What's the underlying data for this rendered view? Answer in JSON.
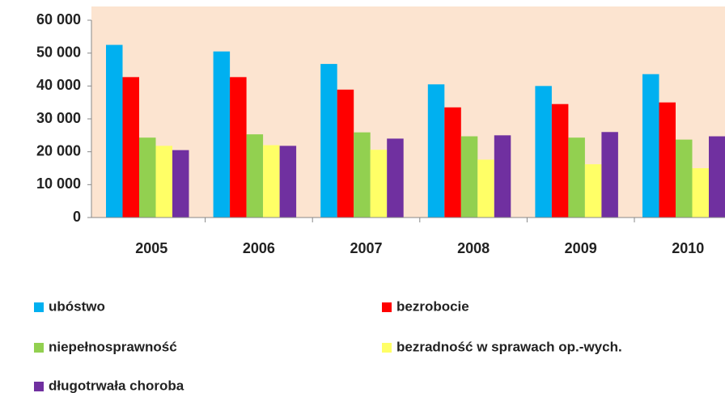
{
  "chart_data": {
    "type": "bar",
    "categories": [
      "2005",
      "2006",
      "2007",
      "2008",
      "2009",
      "2010"
    ],
    "series": [
      {
        "name": "ubóstwo",
        "color": "#00b0f0",
        "values": [
          52500,
          50500,
          46700,
          40500,
          40000,
          43600
        ]
      },
      {
        "name": "bezrobocie",
        "color": "#ff0000",
        "values": [
          42700,
          42700,
          38900,
          33500,
          34500,
          35000
        ]
      },
      {
        "name": "niepełnosprawność",
        "color": "#92d050",
        "values": [
          24300,
          25300,
          25900,
          24700,
          24300,
          23700
        ]
      },
      {
        "name": "bezradność w sprawach op.-wych.",
        "color": "#ffff66",
        "values": [
          21800,
          22000,
          20600,
          17600,
          16200,
          15000
        ]
      },
      {
        "name": "długotrwała choroba",
        "color": "#7030a0",
        "values": [
          20500,
          21800,
          24000,
          25000,
          26000,
          24700
        ]
      }
    ],
    "ylim": [
      0,
      60000
    ],
    "yticks": [
      0,
      {
        "value": 10000,
        "label": "10 000"
      },
      {
        "value": 20000,
        "label": "20 000"
      },
      {
        "value": 30000,
        "label": "30 000"
      },
      {
        "value": 40000,
        "label": "40 000"
      },
      {
        "value": 50000,
        "label": "50 000"
      },
      {
        "value": 60000,
        "label": "60 000"
      }
    ],
    "grid": false
  }
}
